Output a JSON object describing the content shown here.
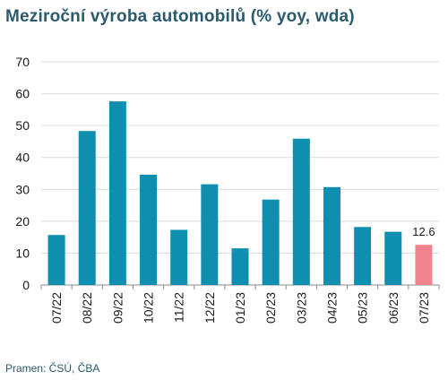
{
  "title": "Meziroční výroba automobilů (% yoy, wda)",
  "source": "Pramen: ČSÚ, ČBA",
  "colors": {
    "bar": "#0e8fb0",
    "highlight": "#f2848f",
    "grid": "#d9d9d9",
    "axis": "#8c8c8c",
    "text": "#1a1a1a",
    "title": "#2a5a6b"
  },
  "chart_data": {
    "type": "bar",
    "categories": [
      "07/22",
      "08/22",
      "09/22",
      "10/22",
      "11/22",
      "12/22",
      "01/23",
      "02/23",
      "03/23",
      "04/23",
      "05/23",
      "06/23",
      "07/23"
    ],
    "values": [
      15.7,
      48.3,
      57.6,
      34.6,
      17.3,
      31.6,
      11.5,
      26.8,
      45.9,
      30.7,
      18.2,
      16.7,
      12.6
    ],
    "highlight_index": 12,
    "data_labels": [
      {
        "index": 12,
        "text": "12.6"
      }
    ],
    "yticks": [
      0,
      10,
      20,
      30,
      40,
      50,
      60,
      70
    ],
    "ylim": [
      0,
      70
    ],
    "grid": true,
    "legend": "none"
  }
}
